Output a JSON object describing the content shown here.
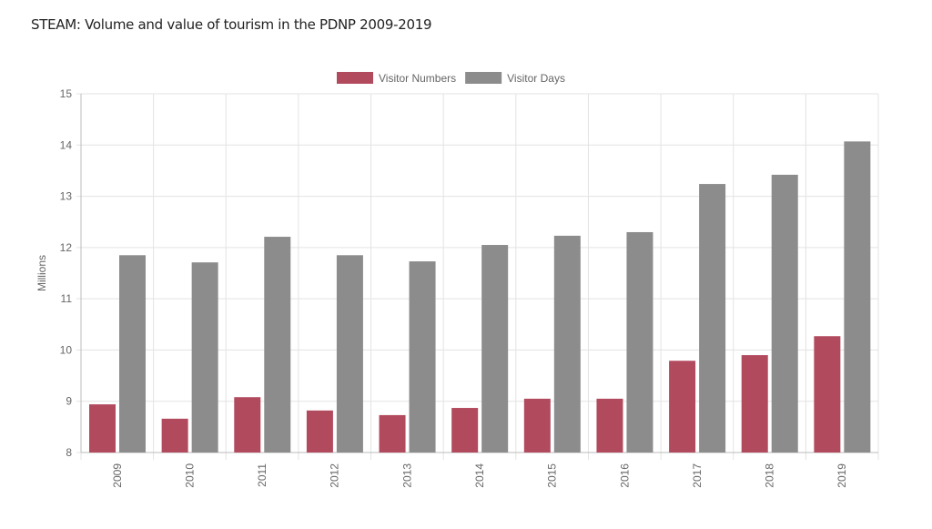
{
  "chart_data": {
    "type": "bar",
    "title": "STEAM: Volume and value of tourism in the PDNP 2009-2019",
    "xlabel": "",
    "ylabel": "Millions",
    "ylim": [
      8,
      15
    ],
    "yticks": [
      "8",
      "9",
      "10",
      "11",
      "12",
      "13",
      "14",
      "15"
    ],
    "grid": true,
    "legend_position": "top",
    "categories": [
      "2009",
      "2010",
      "2011",
      "2012",
      "2013",
      "2014",
      "2015",
      "2016",
      "2017",
      "2018",
      "2019"
    ],
    "series": [
      {
        "name": "Visitor Numbers",
        "color": "#b24a5e",
        "values": [
          8.94,
          8.66,
          9.08,
          8.82,
          8.73,
          8.87,
          9.05,
          9.05,
          9.79,
          9.9,
          10.27
        ]
      },
      {
        "name": "Visitor Days",
        "color": "#8c8c8c",
        "values": [
          11.85,
          11.71,
          12.21,
          11.85,
          11.73,
          12.05,
          12.23,
          12.3,
          13.24,
          13.42,
          14.07
        ]
      }
    ]
  }
}
